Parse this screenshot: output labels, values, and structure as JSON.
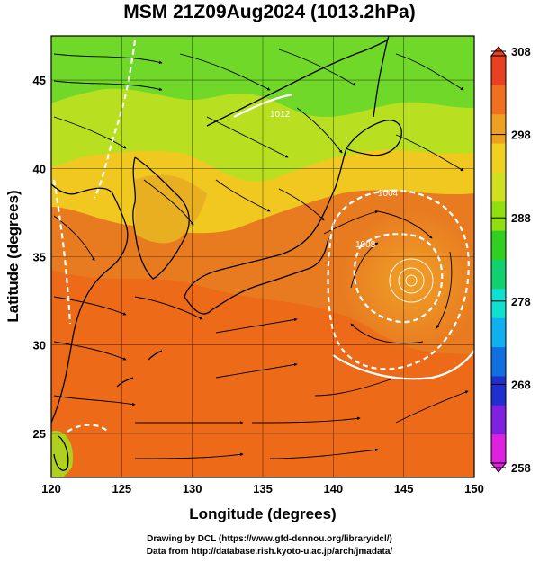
{
  "title": "MSM 21Z09Aug2024 (1013.2hPa)",
  "axes": {
    "xlabel": "Longitude (degrees)",
    "ylabel": "Latitude  (degrees)",
    "x_ticks": [
      "120",
      "125",
      "130",
      "135",
      "140",
      "145",
      "150"
    ],
    "y_ticks": [
      "25",
      "30",
      "35",
      "40",
      "45"
    ],
    "x_range": [
      120,
      150
    ],
    "y_range": [
      22.5,
      47.5
    ]
  },
  "colorbar": {
    "ticks": [
      "258",
      "268",
      "278",
      "288",
      "298",
      "308"
    ],
    "range": [
      258,
      308
    ],
    "colors": [
      "#e020e0",
      "#8020e0",
      "#2030d0",
      "#1070e0",
      "#10b0f0",
      "#10e0d0",
      "#10d070",
      "#30d020",
      "#90e010",
      "#d0e020",
      "#f0d020",
      "#f0a020",
      "#f07020",
      "#e84020"
    ]
  },
  "contour_labels": [
    "1012",
    "1004",
    "1008"
  ],
  "storm_center": {
    "lon": 145.8,
    "lat": 34.5
  },
  "credits": [
    "Drawing by DCL (https://www.gfd-dennou.org/library/dcl/)",
    "Data from http://database.rish.kyoto-u.ac.jp/arch/jmadata/"
  ],
  "colors": {
    "land_line": "#000000",
    "contour": "#ffffff",
    "ocean_warm": "#e87a20",
    "north_cool": "#80e020"
  }
}
